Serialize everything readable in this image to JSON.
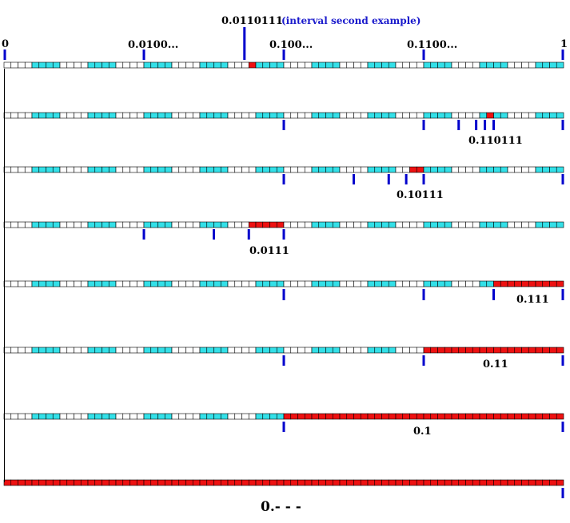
{
  "top_labels": {
    "zero": "0",
    "one": "1",
    "quarter": "0.0100...",
    "half": "0.100...",
    "three_quarter": "0.1100...",
    "example_value": "0.0110111",
    "example_note": "(interval second example)"
  },
  "rows": [
    {
      "label": "0.110111"
    },
    {
      "label": "0.10111"
    },
    {
      "label": "0.0111"
    },
    {
      "label": "0.111"
    },
    {
      "label": "0.11"
    },
    {
      "label": "0.1"
    },
    {
      "label": "0.- - -"
    }
  ],
  "colors": {
    "cell_white": "#ffffff",
    "cell_cyan": "#33e0e8",
    "cell_red": "#ee1111",
    "cell_border": "#000000",
    "tick": "#0000cc",
    "note_text": "#1a1acc"
  }
}
